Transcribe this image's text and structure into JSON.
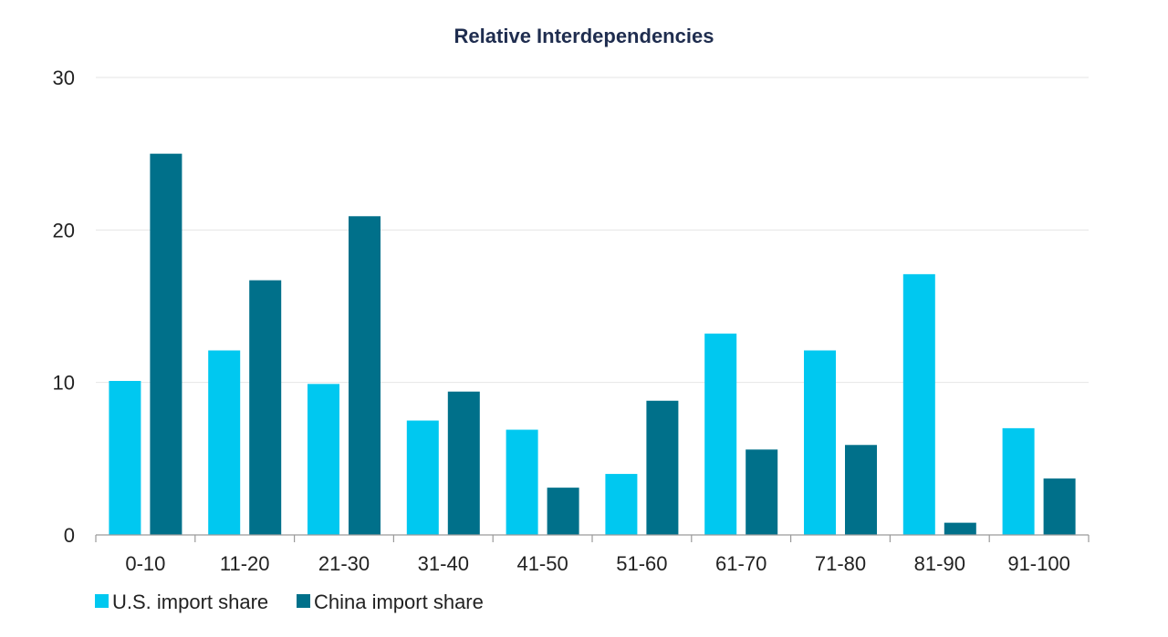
{
  "chart_data": {
    "type": "bar",
    "title": "Relative Interdependencies",
    "xlabel": "",
    "ylabel": "",
    "categories": [
      "0-10",
      "11-20",
      "21-30",
      "31-40",
      "41-50",
      "51-60",
      "61-70",
      "71-80",
      "81-90",
      "91-100"
    ],
    "series": [
      {
        "name": "U.S. import share",
        "color": "#00c8f0",
        "values": [
          10.1,
          12.1,
          9.9,
          7.5,
          6.9,
          4.0,
          13.2,
          12.1,
          17.1,
          7.0
        ]
      },
      {
        "name": "China import share",
        "color": "#00708a",
        "values": [
          25.0,
          16.7,
          20.9,
          9.4,
          3.1,
          8.8,
          5.6,
          5.9,
          0.8,
          3.7
        ]
      }
    ],
    "ylim": [
      0,
      30
    ],
    "yticks": [
      0,
      10,
      20,
      30
    ],
    "grid": true,
    "legend_position": "bottom-left"
  }
}
